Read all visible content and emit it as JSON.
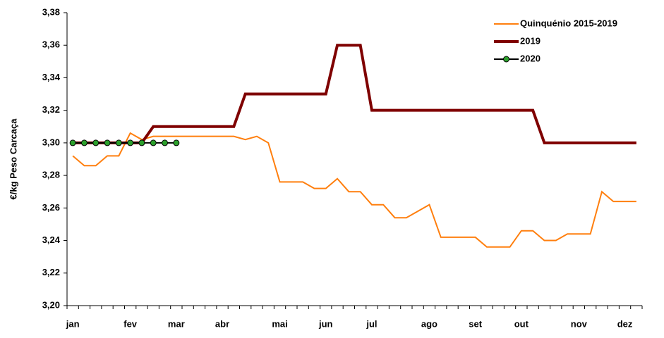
{
  "chart_data": {
    "type": "line",
    "y_label": "€/kg Peso Carcaça",
    "categories": [
      "jan",
      null,
      null,
      null,
      null,
      "fev",
      null,
      null,
      null,
      "mar",
      null,
      null,
      null,
      "abr",
      null,
      null,
      null,
      null,
      "mai",
      null,
      null,
      null,
      "jun",
      null,
      null,
      null,
      "jul",
      null,
      null,
      null,
      null,
      "ago",
      null,
      null,
      null,
      "set",
      null,
      null,
      null,
      "out",
      null,
      null,
      null,
      null,
      "nov",
      null,
      null,
      null,
      "dez",
      null
    ],
    "series": [
      {
        "name": "Quinquénio 2015-2019",
        "color": "#ff7f0e",
        "marker": false,
        "width": 2,
        "values": [
          3.292,
          3.286,
          3.286,
          3.292,
          3.292,
          3.306,
          3.302,
          3.304,
          3.304,
          3.304,
          3.304,
          3.304,
          3.304,
          3.304,
          3.304,
          3.302,
          3.304,
          3.3,
          3.276,
          3.276,
          3.276,
          3.272,
          3.272,
          3.278,
          3.27,
          3.27,
          3.262,
          3.262,
          3.254,
          3.254,
          3.258,
          3.262,
          3.242,
          3.242,
          3.242,
          3.242,
          3.236,
          3.236,
          3.236,
          3.246,
          3.246,
          3.24,
          3.24,
          3.244,
          3.244,
          3.244,
          3.27,
          3.264,
          3.264,
          3.264
        ]
      },
      {
        "name": "2019",
        "color": "#7f0000",
        "marker": false,
        "width": 4,
        "values": [
          3.3,
          3.3,
          3.3,
          3.3,
          3.3,
          3.3,
          3.3,
          3.31,
          3.31,
          3.31,
          3.31,
          3.31,
          3.31,
          3.31,
          3.31,
          3.33,
          3.33,
          3.33,
          3.33,
          3.33,
          3.33,
          3.33,
          3.33,
          3.36,
          3.36,
          3.36,
          3.32,
          3.32,
          3.32,
          3.32,
          3.32,
          3.32,
          3.32,
          3.32,
          3.32,
          3.32,
          3.32,
          3.32,
          3.32,
          3.32,
          3.32,
          3.3,
          3.3,
          3.3,
          3.3,
          3.3,
          3.3,
          3.3,
          3.3,
          3.3
        ]
      },
      {
        "name": "2020",
        "color": "#000000",
        "marker": true,
        "marker_color": "#2ca02c",
        "width": 2,
        "values": [
          3.3,
          3.3,
          3.3,
          3.3,
          3.3,
          3.3,
          3.3,
          3.3,
          3.3,
          3.3,
          null,
          null,
          null,
          null,
          null,
          null,
          null,
          null,
          null,
          null,
          null,
          null,
          null,
          null,
          null,
          null,
          null,
          null,
          null,
          null,
          null,
          null,
          null,
          null,
          null,
          null,
          null,
          null,
          null,
          null,
          null,
          null,
          null,
          null,
          null,
          null,
          null,
          null,
          null,
          null
        ]
      }
    ],
    "ylim": [
      3.2,
      3.38
    ],
    "yticks": [
      {
        "value": 3.2,
        "label": "3,20"
      },
      {
        "value": 3.22,
        "label": "3,22"
      },
      {
        "value": 3.24,
        "label": "3,24"
      },
      {
        "value": 3.26,
        "label": "3,26"
      },
      {
        "value": 3.28,
        "label": "3,28"
      },
      {
        "value": 3.3,
        "label": "3,30"
      },
      {
        "value": 3.32,
        "label": "3,32"
      },
      {
        "value": 3.34,
        "label": "3,34"
      },
      {
        "value": 3.36,
        "label": "3,36"
      },
      {
        "value": 3.38,
        "label": "3,38"
      }
    ],
    "grid": false,
    "legend": "top-right"
  }
}
